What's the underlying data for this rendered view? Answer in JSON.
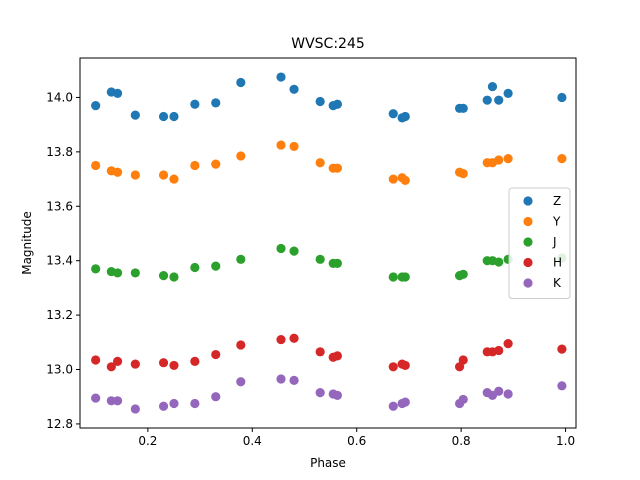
{
  "chart_data": {
    "type": "scatter",
    "title": "WVSC:245",
    "xlabel": "Phase",
    "ylabel": "Magnitude",
    "xlim": [
      0.07,
      1.02
    ],
    "ylim": [
      12.785,
      14.145
    ],
    "x_ticks": [
      "0.2",
      "0.4",
      "0.6",
      "0.8",
      "1.0"
    ],
    "x_tick_values": [
      0.2,
      0.4,
      0.6,
      0.8,
      1.0
    ],
    "y_ticks": [
      "12.8",
      "13.0",
      "13.2",
      "13.4",
      "13.6",
      "13.8",
      "14.0"
    ],
    "y_tick_values": [
      12.8,
      13.0,
      13.2,
      13.4,
      13.6,
      13.8,
      14.0
    ],
    "grid": false,
    "legend_position": "right",
    "x": [
      0.1,
      0.13,
      0.142,
      0.176,
      0.23,
      0.25,
      0.29,
      0.33,
      0.378,
      0.455,
      0.48,
      0.53,
      0.555,
      0.563,
      0.67,
      0.687,
      0.693,
      0.797,
      0.804,
      0.85,
      0.86,
      0.872,
      0.89,
      0.993
    ],
    "series": [
      {
        "name": "Z",
        "color": "#1f77b4",
        "values": [
          13.97,
          14.02,
          14.015,
          13.935,
          13.93,
          13.93,
          13.975,
          13.98,
          14.055,
          14.075,
          14.03,
          13.985,
          13.97,
          13.975,
          13.94,
          13.925,
          13.93,
          13.96,
          13.96,
          13.99,
          14.04,
          13.99,
          14.015,
          14.0
        ]
      },
      {
        "name": "Y",
        "color": "#ff7f0e",
        "values": [
          13.75,
          13.73,
          13.725,
          13.715,
          13.715,
          13.7,
          13.75,
          13.755,
          13.785,
          13.825,
          13.82,
          13.76,
          13.74,
          13.74,
          13.7,
          13.705,
          13.695,
          13.725,
          13.72,
          13.76,
          13.76,
          13.77,
          13.775,
          13.775
        ]
      },
      {
        "name": "J",
        "color": "#2ca02c",
        "values": [
          13.37,
          13.36,
          13.355,
          13.355,
          13.345,
          13.34,
          13.375,
          13.38,
          13.405,
          13.445,
          13.435,
          13.405,
          13.39,
          13.39,
          13.34,
          13.34,
          13.34,
          13.345,
          13.35,
          13.4,
          13.4,
          13.395,
          13.405,
          13.41
        ]
      },
      {
        "name": "H",
        "color": "#d62728",
        "values": [
          13.035,
          13.01,
          13.03,
          13.02,
          13.025,
          13.015,
          13.03,
          13.055,
          13.09,
          13.11,
          13.115,
          13.065,
          13.045,
          13.05,
          13.01,
          13.02,
          13.015,
          13.01,
          13.035,
          13.065,
          13.065,
          13.07,
          13.095,
          13.075
        ]
      },
      {
        "name": "K",
        "color": "#9467bd",
        "values": [
          12.895,
          12.885,
          12.885,
          12.855,
          12.865,
          12.875,
          12.875,
          12.9,
          12.955,
          12.965,
          12.96,
          12.915,
          12.91,
          12.905,
          12.865,
          12.875,
          12.88,
          12.875,
          12.89,
          12.915,
          12.905,
          12.92,
          12.91,
          12.94
        ]
      }
    ]
  }
}
